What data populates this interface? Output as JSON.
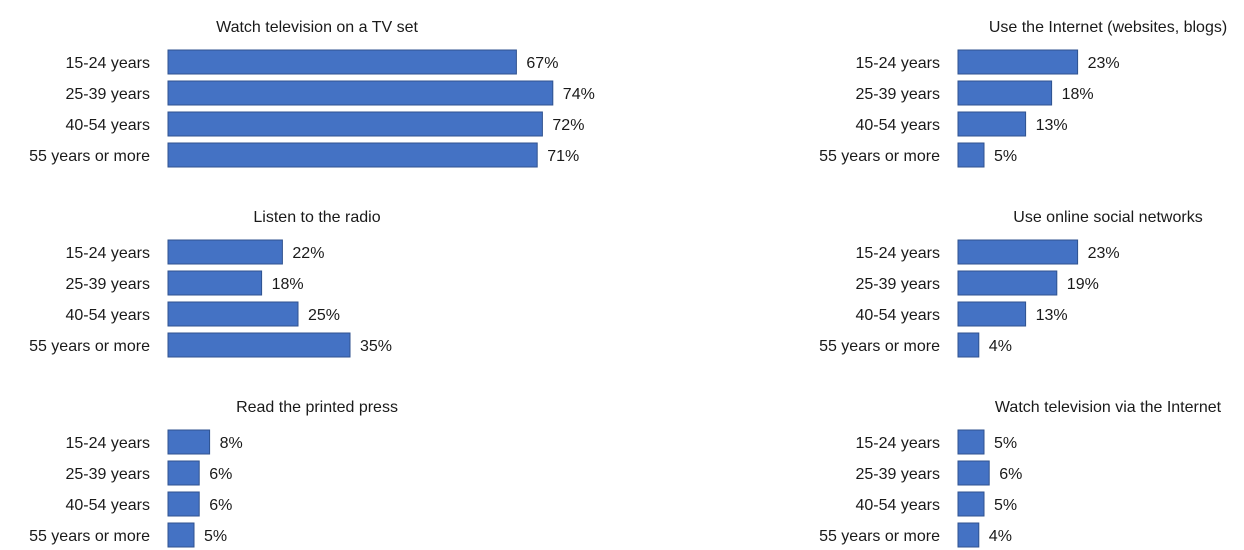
{
  "chart_data": [
    {
      "type": "bar",
      "orientation": "horizontal",
      "title": "Watch television on a TV set",
      "categories": [
        "15-24 years",
        "25-39 years",
        "40-54 years",
        "55 years or more"
      ],
      "values": [
        67,
        74,
        72,
        71
      ],
      "value_labels": [
        "67%",
        "74%",
        "72%",
        "71%"
      ],
      "unit": "%"
    },
    {
      "type": "bar",
      "orientation": "horizontal",
      "title": "Listen to the radio",
      "categories": [
        "15-24 years",
        "25-39 years",
        "40-54 years",
        "55 years or more"
      ],
      "values": [
        22,
        18,
        25,
        35
      ],
      "value_labels": [
        "22%",
        "18%",
        "25%",
        "35%"
      ],
      "unit": "%"
    },
    {
      "type": "bar",
      "orientation": "horizontal",
      "title": "Read the printed press",
      "categories": [
        "15-24 years",
        "25-39 years",
        "40-54 years",
        "55 years or more"
      ],
      "values": [
        8,
        6,
        6,
        5
      ],
      "value_labels": [
        "8%",
        "6%",
        "6%",
        "5%"
      ],
      "unit": "%"
    },
    {
      "type": "bar",
      "orientation": "horizontal",
      "title": "Use the Internet (websites, blogs)",
      "categories": [
        "15-24 years",
        "25-39 years",
        "40-54 years",
        "55 years or more"
      ],
      "values": [
        23,
        18,
        13,
        5
      ],
      "value_labels": [
        "23%",
        "18%",
        "13%",
        "5%"
      ],
      "unit": "%"
    },
    {
      "type": "bar",
      "orientation": "horizontal",
      "title": "Use online social networks",
      "categories": [
        "15-24 years",
        "25-39 years",
        "40-54 years",
        "55 years or more"
      ],
      "values": [
        23,
        19,
        13,
        4
      ],
      "value_labels": [
        "23%",
        "19%",
        "13%",
        "4%"
      ],
      "unit": "%"
    },
    {
      "type": "bar",
      "orientation": "horizontal",
      "title": "Watch television via the Internet",
      "categories": [
        "15-24 years",
        "25-39 years",
        "40-54 years",
        "55 years or more"
      ],
      "values": [
        5,
        6,
        5,
        4
      ],
      "value_labels": [
        "5%",
        "6%",
        "5%",
        "4%"
      ],
      "unit": "%"
    }
  ],
  "colors": {
    "bar": "#4472c4",
    "bar_stroke": "#2f528f",
    "text": "#1a1a1a"
  }
}
